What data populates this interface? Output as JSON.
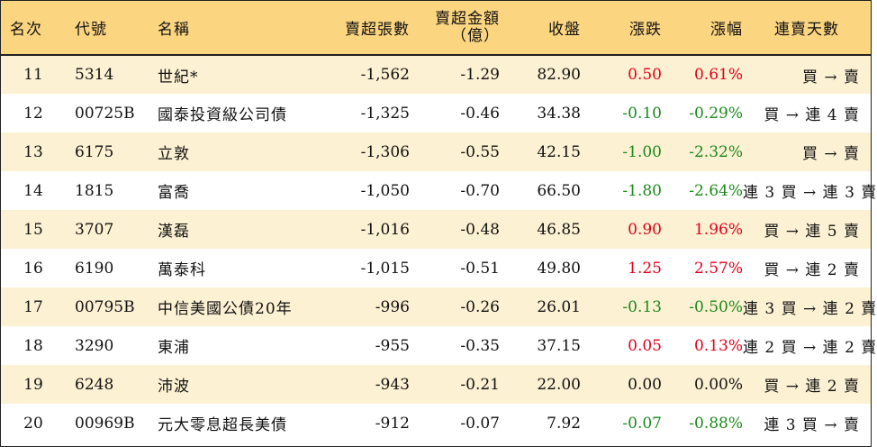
{
  "headers": {
    "rank": "名次",
    "code": "代號",
    "name": "名稱",
    "net_sell_volume": "賣超張數",
    "net_sell_amount_line1": "賣超金額",
    "net_sell_amount_line2": "（億）",
    "close": "收盤",
    "change": "漲跌",
    "change_pct": "漲幅",
    "consecutive_days": "連賣天數"
  },
  "colors": {
    "header_bg": "#fcd581",
    "stripe_bg": "#fdf1d3",
    "up": "#e0001a",
    "down": "#1a8a1a"
  },
  "rows": [
    {
      "rank": "11",
      "code": "5314",
      "name": "世紀*",
      "volume": "-1,562",
      "amount": "-1.29",
      "close": "82.90",
      "change": "0.50",
      "pct": "0.61%",
      "dir": "up",
      "days": "買 → 賣"
    },
    {
      "rank": "12",
      "code": "00725B",
      "name": "國泰投資級公司債",
      "volume": "-1,325",
      "amount": "-0.46",
      "close": "34.38",
      "change": "-0.10",
      "pct": "-0.29%",
      "dir": "down",
      "days": "買 → 連 4 賣"
    },
    {
      "rank": "13",
      "code": "6175",
      "name": "立敦",
      "volume": "-1,306",
      "amount": "-0.55",
      "close": "42.15",
      "change": "-1.00",
      "pct": "-2.32%",
      "dir": "down",
      "days": "買 → 賣"
    },
    {
      "rank": "14",
      "code": "1815",
      "name": "富喬",
      "volume": "-1,050",
      "amount": "-0.70",
      "close": "66.50",
      "change": "-1.80",
      "pct": "-2.64%",
      "dir": "down",
      "days": "連 3 買 → 連 3 賣"
    },
    {
      "rank": "15",
      "code": "3707",
      "name": "漢磊",
      "volume": "-1,016",
      "amount": "-0.48",
      "close": "46.85",
      "change": "0.90",
      "pct": "1.96%",
      "dir": "up",
      "days": "買 → 連 5 賣"
    },
    {
      "rank": "16",
      "code": "6190",
      "name": "萬泰科",
      "volume": "-1,015",
      "amount": "-0.51",
      "close": "49.80",
      "change": "1.25",
      "pct": "2.57%",
      "dir": "up",
      "days": "買 → 連 2 賣"
    },
    {
      "rank": "17",
      "code": "00795B",
      "name": "中信美國公債20年",
      "volume": "-996",
      "amount": "-0.26",
      "close": "26.01",
      "change": "-0.13",
      "pct": "-0.50%",
      "dir": "down",
      "days": "連 3 買 → 連 2 賣"
    },
    {
      "rank": "18",
      "code": "3290",
      "name": "東浦",
      "volume": "-955",
      "amount": "-0.35",
      "close": "37.15",
      "change": "0.05",
      "pct": "0.13%",
      "dir": "up",
      "days": "連 2 買 → 連 2 賣"
    },
    {
      "rank": "19",
      "code": "6248",
      "name": "沛波",
      "volume": "-943",
      "amount": "-0.21",
      "close": "22.00",
      "change": "0.00",
      "pct": "0.00%",
      "dir": "flat",
      "days": "買 → 連 2 賣"
    },
    {
      "rank": "20",
      "code": "00969B",
      "name": "元大零息超長美債",
      "volume": "-912",
      "amount": "-0.07",
      "close": "7.92",
      "change": "-0.07",
      "pct": "-0.88%",
      "dir": "down",
      "days": "連 3 買 → 賣"
    }
  ]
}
